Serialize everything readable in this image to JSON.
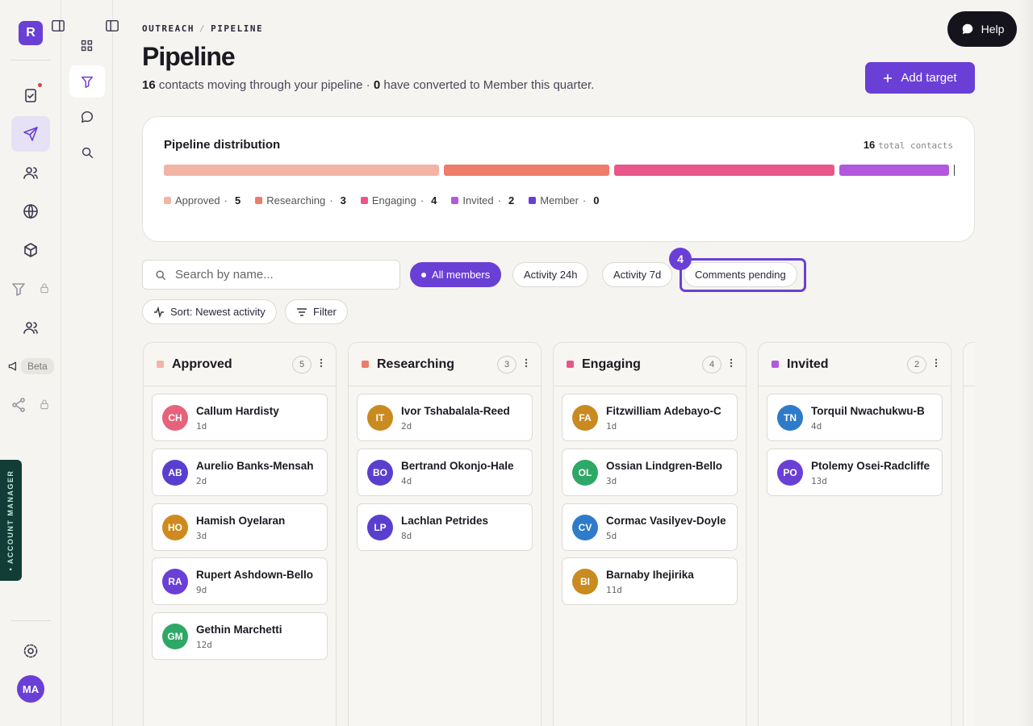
{
  "sidebar": {
    "logo": "R",
    "beta": "Beta",
    "avatar": "MA",
    "account_manager": "• ACCOUNT MANAGER"
  },
  "breadcrumb": {
    "parent": "OUTREACH",
    "separator": "/",
    "current": "PIPELINE"
  },
  "header": {
    "title": "Pipeline",
    "contacts": 16,
    "contacts_text": "contacts moving through your pipeline ·",
    "converted": 0,
    "converted_text": "have converted to Member this quarter."
  },
  "help": "Help",
  "add_target": "Add target",
  "distribution": {
    "title": "Pipeline distribution",
    "total": 16,
    "total_label": "total contacts",
    "separator": "·",
    "stages": [
      {
        "name": "Approved",
        "count": 5,
        "color": "#f2b4a4"
      },
      {
        "name": "Researching",
        "count": 3,
        "color": "#ef7b6b"
      },
      {
        "name": "Engaging",
        "count": 4,
        "color": "#e8568a"
      },
      {
        "name": "Invited",
        "count": 2,
        "color": "#b159dd"
      },
      {
        "name": "Member",
        "count": 0,
        "color": "#6a3fd6"
      }
    ]
  },
  "filters": {
    "search_placeholder": "Search by name...",
    "tabs": [
      "All members",
      "Activity 24h",
      "Activity 7d",
      "Comments pending"
    ],
    "pending_badge": 4,
    "sort": "Sort: Newest activity",
    "filter": "Filter"
  },
  "columns": [
    {
      "name": "Approved",
      "count": 5,
      "color": "#f2b4a4",
      "cards": [
        {
          "initials": "CH",
          "name": "Callum Hardisty",
          "age": "1d",
          "color": "#e6637a"
        },
        {
          "initials": "AB",
          "name": "Aurelio Banks-Mensah",
          "age": "2d",
          "color": "#5a3fcf"
        },
        {
          "initials": "HO",
          "name": "Hamish Oyelaran",
          "age": "3d",
          "color": "#cf8a1f"
        },
        {
          "initials": "RA",
          "name": "Rupert Ashdown-Bello",
          "age": "9d",
          "color": "#6a3fd6"
        },
        {
          "initials": "GM",
          "name": "Gethin Marchetti",
          "age": "12d",
          "color": "#2ea866"
        }
      ]
    },
    {
      "name": "Researching",
      "count": 3,
      "color": "#ef7b6b",
      "cards": [
        {
          "initials": "IT",
          "name": "Ivor Tshabalala-Reed",
          "age": "2d",
          "color": "#c98a20"
        },
        {
          "initials": "BO",
          "name": "Bertrand Okonjo-Hale",
          "age": "4d",
          "color": "#5a3fcf"
        },
        {
          "initials": "LP",
          "name": "Lachlan Petrides",
          "age": "8d",
          "color": "#5a3fcf"
        }
      ]
    },
    {
      "name": "Engaging",
      "count": 4,
      "color": "#e8568a",
      "cards": [
        {
          "initials": "FA",
          "name": "Fitzwilliam Adebayo-C",
          "age": "1d",
          "color": "#c98a20"
        },
        {
          "initials": "OL",
          "name": "Ossian Lindgren-Bello",
          "age": "3d",
          "color": "#2ea866"
        },
        {
          "initials": "CV",
          "name": "Cormac Vasilyev-Doyle",
          "age": "5d",
          "color": "#2e7bc9"
        },
        {
          "initials": "BI",
          "name": "Barnaby Ihejirika",
          "age": "11d",
          "color": "#c98a20"
        }
      ]
    },
    {
      "name": "Invited",
      "count": 2,
      "color": "#b159dd",
      "cards": [
        {
          "initials": "TN",
          "name": "Torquil Nwachukwu-B",
          "age": "4d",
          "color": "#2e7bc9"
        },
        {
          "initials": "PO",
          "name": "Ptolemy Osei-Radcliffe",
          "age": "13d",
          "color": "#6a3fd6"
        }
      ]
    }
  ]
}
